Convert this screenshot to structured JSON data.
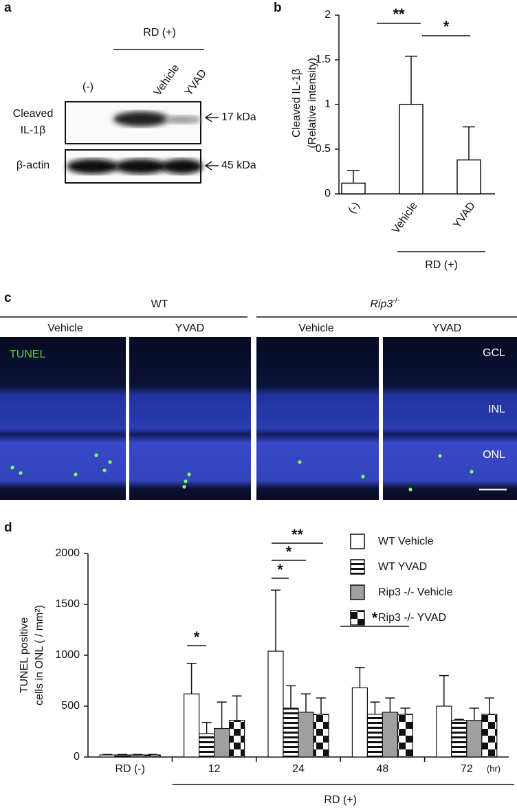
{
  "blot": {
    "panel": "a",
    "group_label": "RD (+)",
    "lanes": [
      "(-)",
      "Vehicle",
      "YVAD"
    ],
    "rows": [
      {
        "label": [
          "Cleaved",
          "IL-1β"
        ],
        "size": "17 kDa"
      },
      {
        "label": [
          "β-actin"
        ],
        "size": "45 kDa"
      }
    ]
  },
  "micrographs": {
    "panel": "c",
    "genotypes": [
      {
        "name": "WT"
      },
      {
        "name": "Rip3",
        "superscript": "-/-"
      }
    ],
    "treatments": [
      "Vehicle",
      "YVAD",
      "Vehicle",
      "YVAD"
    ],
    "stain": "TUNEL",
    "layers": [
      "GCL",
      "INL",
      "ONL"
    ]
  },
  "chart_data": [
    {
      "type": "bar",
      "panel": "b",
      "categories": [
        "(-)",
        "Vehicle",
        "YVAD"
      ],
      "values": [
        0.12,
        1.0,
        0.38
      ],
      "errors": [
        0.14,
        0.54,
        0.37
      ],
      "color": "#ffffff",
      "ylim": [
        0,
        2
      ],
      "yticks": [
        0,
        0.5,
        1,
        1.5,
        2
      ],
      "y_label": [
        "Cleaved IL-1β",
        "(Relative intensity)"
      ],
      "group_label": "RD (+)",
      "annotations": [
        "**",
        "*"
      ]
    },
    {
      "type": "grouped-bar",
      "panel": "d",
      "categories": [
        "RD (-)",
        "12",
        "24",
        "48",
        "72"
      ],
      "x_unit": "(hr)",
      "group_label": "RD (+)",
      "series": [
        {
          "name": "WT Vehicle",
          "color": "#ffffff",
          "pattern": "none",
          "values": [
            20,
            620,
            1040,
            680,
            500
          ],
          "errors": [
            5,
            300,
            600,
            200,
            300
          ]
        },
        {
          "name": "WT YVAD",
          "color": "#ffffff",
          "pattern": "horizontal-stripes",
          "values": [
            20,
            230,
            480,
            420,
            360
          ],
          "errors": [
            5,
            110,
            220,
            120,
            10
          ]
        },
        {
          "name": "Rip3 -/- Vehicle",
          "color": "#a0a0a0",
          "pattern": "none",
          "values": [
            20,
            280,
            440,
            440,
            360
          ],
          "errors": [
            5,
            260,
            180,
            140,
            120
          ]
        },
        {
          "name": "Rip3 -/- YVAD",
          "color": "#ffffff",
          "pattern": "checker",
          "values": [
            20,
            360,
            420,
            420,
            420
          ],
          "errors": [
            5,
            240,
            160,
            60,
            160
          ]
        }
      ],
      "ylim": [
        0,
        2000
      ],
      "yticks": [
        0,
        500,
        1000,
        1500,
        2000
      ],
      "y_label": [
        "TUNEL positive",
        "cells in ONL ( / mm²)"
      ],
      "annotations": [
        "*",
        "**",
        "*",
        "*",
        "*"
      ]
    }
  ]
}
